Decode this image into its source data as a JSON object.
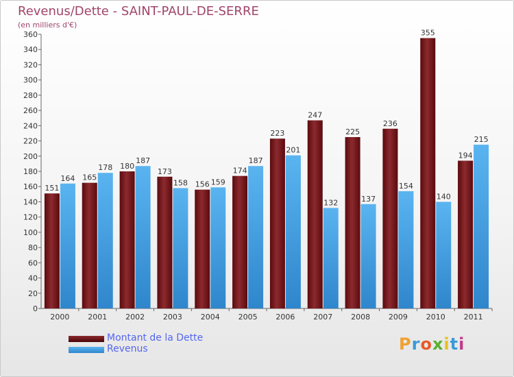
{
  "header": {
    "title": "Revenus/Dette - SAINT-PAUL-DE-SERRE",
    "subtitle": "(en milliers d'€)"
  },
  "legend": {
    "items": [
      {
        "label": "Montant de la Dette",
        "color": "#6b0d12"
      },
      {
        "label": "Revenus",
        "color": "#4aa3e8"
      }
    ]
  },
  "logo": {
    "text": "Proxiti",
    "letters": [
      "P",
      "r",
      "o",
      "x",
      "i",
      "t",
      "i"
    ],
    "colors": [
      "#f0a030",
      "#3a9ad9",
      "#e85a2a",
      "#58b030",
      "#e8c020",
      "#3a9ad9",
      "#c03a8a"
    ]
  },
  "chart_data": {
    "type": "bar",
    "title": "Revenus/Dette - SAINT-PAUL-DE-SERRE",
    "ylabel": "(en milliers d'€)",
    "xlabel": "",
    "ylim": [
      0,
      360
    ],
    "ytick_step": 20,
    "categories": [
      "2000",
      "2001",
      "2002",
      "2003",
      "2004",
      "2005",
      "2006",
      "2007",
      "2008",
      "2009",
      "2010",
      "2011"
    ],
    "series": [
      {
        "name": "Montant de la Dette",
        "color": "#7a1a1e",
        "values": [
          151,
          165,
          180,
          173,
          156,
          174,
          223,
          247,
          225,
          236,
          355,
          194
        ]
      },
      {
        "name": "Revenus",
        "color": "#4aa3e8",
        "values": [
          164,
          178,
          187,
          158,
          159,
          187,
          201,
          132,
          137,
          154,
          140,
          215
        ]
      }
    ],
    "legend_position": "bottom-left",
    "grid": false
  }
}
